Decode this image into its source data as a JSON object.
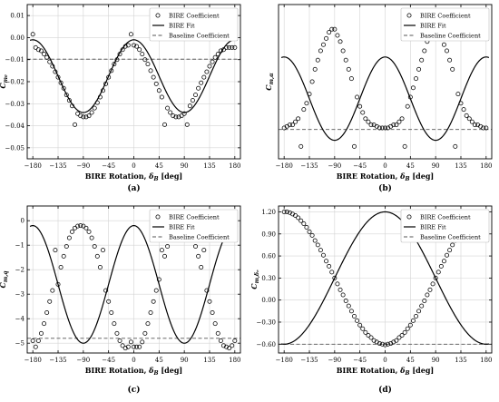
{
  "chart_data": [
    {
      "id": "a",
      "type": "scatter",
      "caption": "(a)",
      "ylabel_sym": "C",
      "ylabel_sub": "m₀",
      "xlabel_pre": "BIRE Rotation, ",
      "xlabel_sym": "δ",
      "xlabel_sub": "B",
      "xlabel_post": " [deg]",
      "xlim": [
        -190,
        190
      ],
      "ylim": [
        -0.055,
        0.015
      ],
      "xticks": [
        -180,
        -135,
        -90,
        -45,
        0,
        45,
        90,
        135,
        180
      ],
      "xtick_labels": [
        "−180",
        "−135",
        "−90",
        "−45",
        "0",
        "45",
        "90",
        "135",
        "180"
      ],
      "yticks": [
        0.01,
        0.0,
        -0.01,
        -0.02,
        -0.03,
        -0.04,
        -0.05
      ],
      "ytick_labels": [
        "0.01",
        "0.00",
        "−0.01",
        "−0.02",
        "−0.03",
        "−0.04",
        "−0.05"
      ],
      "baseline": -0.0098,
      "fit": {
        "mean": -0.0175,
        "amp": 0.0165,
        "shape": "cos2"
      },
      "points": {
        "x": [
          -180,
          -175,
          -170,
          -165,
          -160,
          -155,
          -150,
          -145,
          -140,
          -135,
          -130,
          -125,
          -120,
          -115,
          -110,
          -105,
          -100,
          -95,
          -90,
          -85,
          -80,
          -75,
          -70,
          -65,
          -60,
          -55,
          -50,
          -45,
          -40,
          -35,
          -30,
          -25,
          -20,
          -15,
          -10,
          -5,
          0,
          5,
          10,
          15,
          20,
          25,
          30,
          35,
          40,
          45,
          50,
          55,
          60,
          65,
          70,
          75,
          80,
          85,
          90,
          95,
          100,
          105,
          110,
          115,
          120,
          125,
          130,
          135,
          140,
          145,
          150,
          155,
          160,
          165,
          170,
          175,
          180
        ],
        "y": [
          0.0015,
          -0.0045,
          -0.0055,
          -0.006,
          -0.0075,
          -0.009,
          -0.011,
          -0.013,
          -0.0155,
          -0.018,
          -0.0205,
          -0.023,
          -0.026,
          -0.0285,
          -0.031,
          -0.0395,
          -0.0345,
          -0.0355,
          -0.036,
          -0.036,
          -0.0355,
          -0.034,
          -0.032,
          -0.0295,
          -0.027,
          -0.024,
          -0.021,
          -0.018,
          -0.015,
          -0.012,
          -0.01,
          -0.0075,
          -0.0055,
          -0.004,
          -0.0035,
          0.0015,
          -0.0035,
          -0.004,
          -0.0055,
          -0.0075,
          -0.01,
          -0.012,
          -0.015,
          -0.018,
          -0.021,
          -0.024,
          -0.027,
          -0.0395,
          -0.032,
          -0.034,
          -0.0355,
          -0.036,
          -0.036,
          -0.0355,
          -0.0345,
          -0.0395,
          -0.031,
          -0.0285,
          -0.026,
          -0.023,
          -0.0205,
          -0.018,
          -0.0155,
          -0.013,
          -0.011,
          -0.009,
          -0.0075,
          -0.006,
          -0.0055,
          -0.0045,
          -0.0045,
          -0.0045,
          -0.0045
        ]
      },
      "legend": {
        "position": "top-right",
        "entries": [
          "BIRE Coefficient",
          "BIRE Fit",
          "Baseline Coefficient"
        ]
      }
    },
    {
      "id": "b",
      "type": "scatter",
      "caption": "(b)",
      "ylabel_sym": "C",
      "ylabel_sub": "m,α",
      "xlabel_pre": "BIRE Rotation, ",
      "xlabel_sym": "δ",
      "xlabel_sub": "B",
      "xlabel_post": " [deg]",
      "xlim": [
        -190,
        190
      ],
      "ylim": [
        0.08,
        0.58
      ],
      "xticks": [
        -180,
        -135,
        -90,
        -45,
        0,
        45,
        90,
        135,
        180
      ],
      "xtick_labels": [
        "−180",
        "−135",
        "−90",
        "−45",
        "0",
        "45",
        "90",
        "135",
        "180"
      ],
      "yticks": [],
      "ytick_labels": [],
      "baseline": 0.175,
      "fit": {
        "mean": 0.275,
        "amp": 0.135,
        "shape": "cos2"
      },
      "points": {
        "x": [
          -180,
          -175,
          -170,
          -165,
          -160,
          -155,
          -150,
          -145,
          -140,
          -135,
          -130,
          -125,
          -120,
          -115,
          -110,
          -105,
          -100,
          -95,
          -90,
          -85,
          -80,
          -75,
          -70,
          -65,
          -60,
          -55,
          -50,
          -45,
          -40,
          -35,
          -30,
          -25,
          -20,
          -15,
          -10,
          -5,
          0,
          5,
          10,
          15,
          20,
          25,
          30,
          35,
          40,
          45,
          50,
          55,
          60,
          65,
          70,
          75,
          80,
          85,
          90,
          95,
          100,
          105,
          110,
          115,
          120,
          125,
          130,
          135,
          140,
          145,
          150,
          155,
          160,
          165,
          170,
          175,
          180
        ],
        "y": [
          0.18,
          0.185,
          0.19,
          0.19,
          0.2,
          0.21,
          0.12,
          0.24,
          0.26,
          0.29,
          0.33,
          0.37,
          0.4,
          0.43,
          0.45,
          0.47,
          0.49,
          0.5,
          0.5,
          0.48,
          0.46,
          0.43,
          0.4,
          0.37,
          0.34,
          0.12,
          0.28,
          0.25,
          0.23,
          0.21,
          0.2,
          0.19,
          0.19,
          0.185,
          0.18,
          0.18,
          0.18,
          0.18,
          0.185,
          0.19,
          0.19,
          0.2,
          0.21,
          0.12,
          0.25,
          0.28,
          0.31,
          0.34,
          0.37,
          0.4,
          0.43,
          0.46,
          0.48,
          0.5,
          0.5,
          0.49,
          0.47,
          0.45,
          0.43,
          0.4,
          0.37,
          0.12,
          0.29,
          0.26,
          0.24,
          0.22,
          0.21,
          0.2,
          0.19,
          0.19,
          0.185,
          0.18,
          0.18
        ]
      },
      "legend": {
        "position": "top-right",
        "entries": [
          "BIRE Coefficient",
          "BIRE Fit",
          "Baseline Coefficient"
        ]
      }
    },
    {
      "id": "c",
      "type": "scatter",
      "caption": "(c)",
      "ylabel_sym": "C",
      "ylabel_sub": "m,q",
      "xlabel_pre": "BIRE Rotation, ",
      "xlabel_sym": "δ",
      "xlabel_sub": "B",
      "xlabel_post": " [deg]",
      "xlim": [
        -190,
        190
      ],
      "ylim": [
        -5.4,
        0.6
      ],
      "xticks": [
        -180,
        -135,
        -90,
        -45,
        0,
        45,
        90,
        135,
        180
      ],
      "xtick_labels": [
        "−180",
        "−135",
        "−90",
        "−45",
        "0",
        "45",
        "90",
        "135",
        "180"
      ],
      "yticks": [
        0,
        -1,
        -2,
        -3,
        -4,
        -5
      ],
      "ytick_labels": [
        "0",
        "−1",
        "−2",
        "−3",
        "−4",
        "−5"
      ],
      "baseline": -4.8,
      "fit": {
        "mean": -2.6,
        "amp": 2.4,
        "shape": "cos2"
      },
      "points": {
        "x": [
          -180,
          -175,
          -170,
          -165,
          -160,
          -155,
          -150,
          -145,
          -140,
          -135,
          -130,
          -125,
          -120,
          -115,
          -110,
          -105,
          -100,
          -95,
          -90,
          -85,
          -80,
          -75,
          -70,
          -65,
          -60,
          -55,
          -50,
          -45,
          -40,
          -35,
          -30,
          -25,
          -20,
          -15,
          -10,
          -5,
          0,
          5,
          10,
          15,
          20,
          25,
          30,
          35,
          40,
          45,
          50,
          55,
          60,
          65,
          70,
          75,
          80,
          85,
          90,
          95,
          100,
          105,
          110,
          115,
          120,
          125,
          130,
          135,
          140,
          145,
          150,
          155,
          160,
          165,
          170,
          175,
          180
        ],
        "y": [
          -4.9,
          -5.15,
          -4.9,
          -4.6,
          -4.2,
          -3.75,
          -3.3,
          -2.85,
          -1.2,
          -2.6,
          -1.9,
          -1.45,
          -1.05,
          -0.7,
          -0.45,
          -0.3,
          -0.22,
          -0.2,
          -0.22,
          -0.3,
          -0.45,
          -0.7,
          -1.05,
          -1.45,
          -1.9,
          -1.2,
          -2.85,
          -3.3,
          -3.75,
          -4.2,
          -4.6,
          -4.9,
          -5.1,
          -5.2,
          -5.15,
          -4.95,
          -5.15,
          -5.15,
          -5.15,
          -4.95,
          -4.6,
          -4.2,
          -3.75,
          -3.3,
          -2.85,
          -2.4,
          -1.2,
          -1.45,
          -1.05,
          -0.7,
          -0.45,
          -0.3,
          -0.22,
          -0.2,
          -0.22,
          -0.3,
          -0.45,
          -0.7,
          -1.05,
          -1.45,
          -1.9,
          -1.2,
          -2.85,
          -3.3,
          -3.75,
          -4.2,
          -4.6,
          -4.9,
          -5.1,
          -5.15,
          -5.2,
          -5.1,
          -4.9
        ]
      },
      "legend": {
        "position": "top-right",
        "entries": [
          "BIRE Coefficient",
          "BIRE Fit",
          "Baseline Coefficient"
        ]
      }
    },
    {
      "id": "d",
      "type": "scatter",
      "caption": "(d)",
      "ylabel_sym": "C",
      "ylabel_sub": "m,δₑ",
      "xlabel_pre": "BIRE Rotation, ",
      "xlabel_sym": "δ",
      "xlabel_sub": "B",
      "xlabel_post": " [deg]",
      "xlim": [
        -190,
        190
      ],
      "ylim": [
        -0.72,
        1.28
      ],
      "xticks": [
        -180,
        -135,
        -90,
        -45,
        0,
        45,
        90,
        135,
        180
      ],
      "xtick_labels": [
        "−180",
        "−135",
        "−90",
        "−45",
        "0",
        "45",
        "90",
        "135",
        "180"
      ],
      "yticks": [
        1.2,
        0.9,
        0.6,
        0.3,
        0.0,
        -0.3,
        -0.6
      ],
      "ytick_labels": [
        "1.20",
        "0.90",
        "0.60",
        "0.30",
        "0.00",
        "−0.30",
        "−0.60"
      ],
      "baseline": -0.6,
      "fit": {
        "mean": 0.3,
        "amp": 0.9,
        "shape": "cos"
      },
      "points": {
        "x": [
          -180,
          -175,
          -170,
          -165,
          -160,
          -155,
          -150,
          -145,
          -140,
          -135,
          -130,
          -125,
          -120,
          -115,
          -110,
          -105,
          -100,
          -95,
          -90,
          -85,
          -80,
          -75,
          -70,
          -65,
          -60,
          -55,
          -50,
          -45,
          -40,
          -35,
          -30,
          -25,
          -20,
          -15,
          -10,
          -5,
          0,
          5,
          10,
          15,
          20,
          25,
          30,
          35,
          40,
          45,
          50,
          55,
          60,
          65,
          70,
          75,
          80,
          85,
          90,
          95,
          100,
          105,
          110,
          115,
          120,
          125,
          130,
          135,
          140,
          145,
          150,
          155,
          160,
          165,
          170,
          175,
          180
        ],
        "y": [
          1.2,
          1.2,
          1.19,
          1.17,
          1.15,
          1.12,
          1.08,
          1.04,
          0.99,
          0.93,
          0.88,
          0.81,
          0.75,
          0.68,
          0.61,
          0.53,
          0.46,
          0.38,
          0.3,
          0.22,
          0.14,
          0.07,
          -0.01,
          -0.08,
          -0.15,
          -0.22,
          -0.28,
          -0.34,
          -0.39,
          -0.44,
          -0.48,
          -0.51,
          -0.55,
          -0.57,
          -0.59,
          -0.6,
          -0.61,
          -0.6,
          -0.59,
          -0.57,
          -0.55,
          -0.51,
          -0.48,
          -0.44,
          -0.39,
          -0.34,
          -0.28,
          -0.22,
          -0.15,
          -0.08,
          -0.01,
          0.07,
          0.14,
          0.22,
          0.3,
          0.38,
          0.46,
          0.53,
          0.61,
          0.68,
          0.75,
          0.81,
          0.88,
          0.93,
          0.99,
          1.04,
          1.08,
          1.12,
          1.15,
          1.17,
          1.19,
          1.2,
          1.2
        ]
      },
      "legend": {
        "position": "top-right",
        "entries": [
          "BIRE Coefficient",
          "BIRE Fit",
          "Baseline Coefficient"
        ]
      }
    }
  ]
}
